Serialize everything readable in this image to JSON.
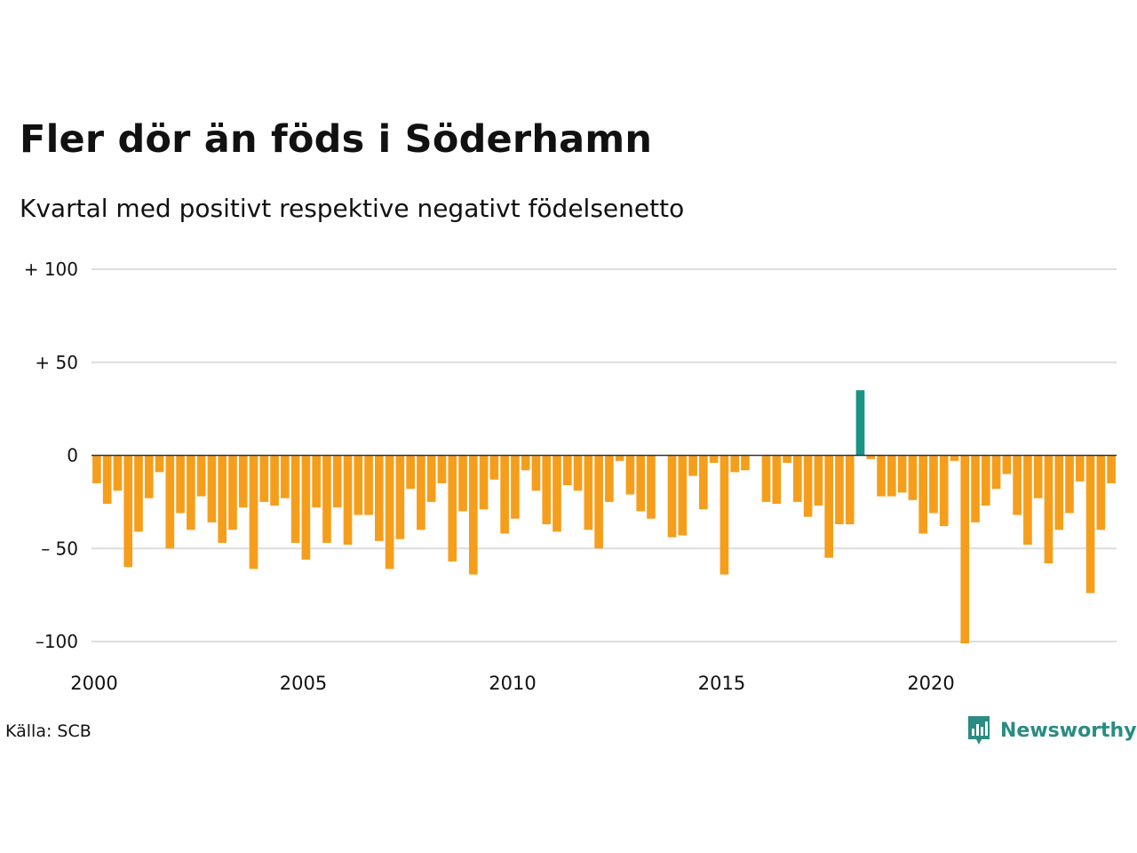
{
  "title": "Fler dör än föds i Söderhamn",
  "subtitle": "Kvartal med positivt respektive negativt födelsenetto",
  "source": "Källa: SCB",
  "brand": {
    "name": "Newsworthy",
    "color": "#2a8c82"
  },
  "chart_data": {
    "type": "bar",
    "title": "Fler dör än föds i Söderhamn",
    "subtitle": "Kvartal med positivt respektive negativt födelsenetto",
    "x_start": 2000,
    "x_end": 2024.5,
    "bar_unit": "quarter",
    "x_ticks": [
      2000,
      2005,
      2010,
      2015,
      2020
    ],
    "x_tick_labels": [
      "2000",
      "2005",
      "2010",
      "2015",
      "2020"
    ],
    "y_ticks": [
      100,
      50,
      0,
      -50,
      -100
    ],
    "y_tick_labels": [
      "+ 100",
      "+  50",
      "0",
      "– 50",
      "–100"
    ],
    "ylim": [
      -100,
      100
    ],
    "grid": true,
    "colors": {
      "positive": "#1a9484",
      "negative": "#f59e1c",
      "grid": "#dddddd",
      "zero": "#333333"
    },
    "values": [
      -15,
      -26,
      -19,
      -60,
      -41,
      -23,
      -9,
      -50,
      -31,
      -40,
      -22,
      -36,
      -47,
      -40,
      -28,
      -61,
      -25,
      -27,
      -23,
      -47,
      -56,
      -28,
      -47,
      -28,
      -48,
      -32,
      -32,
      -46,
      -61,
      -45,
      -18,
      -40,
      -25,
      -15,
      -57,
      -30,
      -64,
      -29,
      -13,
      -42,
      -34,
      -8,
      -19,
      -37,
      -41,
      -16,
      -19,
      -40,
      -50,
      -25,
      -3,
      -21,
      -30,
      -34,
      0,
      -44,
      -43,
      -11,
      -29,
      -4,
      -64,
      -9,
      -8,
      0,
      -25,
      -26,
      -4,
      -25,
      -33,
      -27,
      -55,
      -37,
      -37,
      35,
      -2,
      -22,
      -22,
      -20,
      -24,
      -42,
      -31,
      -38,
      -3,
      -101,
      -36,
      -27,
      -18,
      -10,
      -32,
      -48,
      -23,
      -58,
      -40,
      -31,
      -14,
      -74,
      -40,
      -15
    ]
  }
}
